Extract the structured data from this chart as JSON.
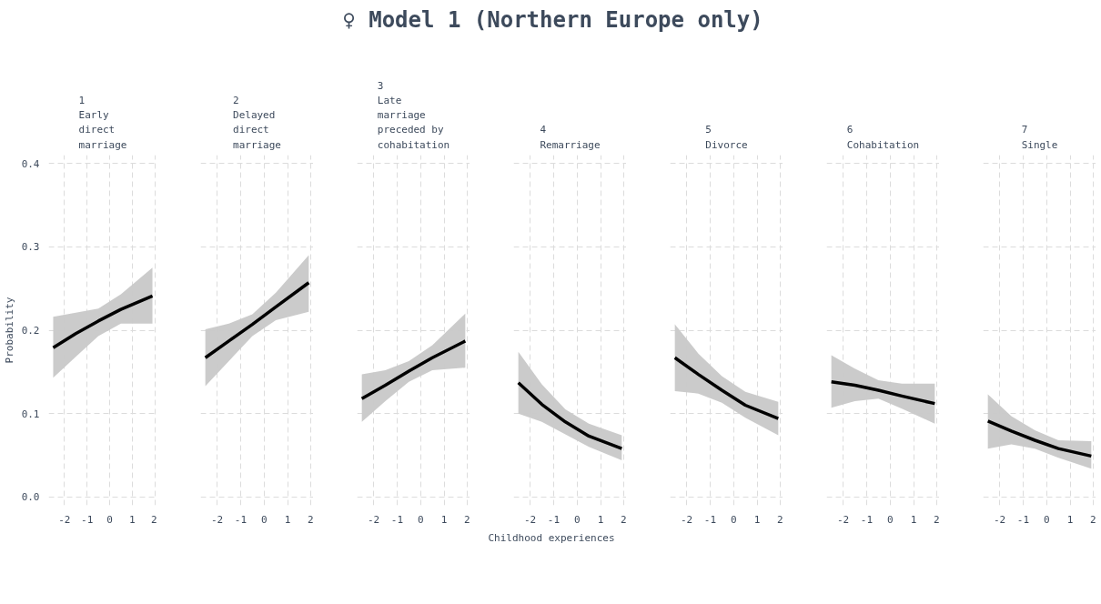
{
  "chart_data": [
    {
      "type": "line",
      "subtitle": "1\nEarly\ndirect\nmarriage",
      "ylabel": "Probability",
      "x": [
        -2.5,
        -1.5,
        -0.5,
        0.5,
        1.9
      ],
      "xlim": [
        -2.7,
        2.1
      ],
      "xticks": [
        -2,
        -1,
        0,
        1,
        2
      ],
      "ylim": [
        -0.01,
        0.41
      ],
      "yticks": [
        {
          "value": 0,
          "label": "0.0"
        },
        0.1,
        0.2,
        0.3,
        0.4
      ],
      "grid": true,
      "line_style": "solid",
      "series": [
        {
          "color": "#000000",
          "values": [
            0.179,
            0.196,
            0.211,
            0.225,
            0.241
          ],
          "lower": [
            0.143,
            0.168,
            0.193,
            0.208,
            0.208
          ],
          "upper": [
            0.216,
            0.221,
            0.226,
            0.243,
            0.275
          ]
        }
      ]
    },
    {
      "type": "line",
      "subtitle": "2\nDelayed\ndirect\nmarriage",
      "x": [
        -2.5,
        -1.5,
        -0.5,
        0.5,
        1.9
      ],
      "xlim": [
        -2.7,
        2.1
      ],
      "xticks": [
        -2,
        -1,
        0,
        1,
        2
      ],
      "ylim": [
        -0.01,
        0.41
      ],
      "yticks": [
        0,
        0.1,
        0.2,
        0.3,
        0.4
      ],
      "grid": true,
      "tick_labels": "x",
      "line_style": "solid",
      "series": [
        {
          "color": "#000000",
          "values": [
            0.167,
            0.187,
            0.207,
            0.228,
            0.257
          ],
          "lower": [
            0.133,
            0.163,
            0.193,
            0.212,
            0.222
          ],
          "upper": [
            0.201,
            0.208,
            0.219,
            0.245,
            0.29
          ]
        }
      ]
    },
    {
      "type": "line",
      "subtitle": "3\nLate\nmarriage\npreceded by\ncohabitation",
      "x": [
        -2.5,
        -1.5,
        -0.5,
        0.5,
        1.9
      ],
      "xlim": [
        -2.7,
        2.1
      ],
      "xticks": [
        -2,
        -1,
        0,
        1,
        2
      ],
      "ylim": [
        -0.01,
        0.41
      ],
      "yticks": [
        0,
        0.1,
        0.2,
        0.3,
        0.4
      ],
      "grid": true,
      "tick_labels": "x",
      "line_style": "solid",
      "series": [
        {
          "color": "#000000",
          "values": [
            0.118,
            0.134,
            0.151,
            0.167,
            0.187
          ],
          "lower": [
            0.09,
            0.115,
            0.138,
            0.152,
            0.155
          ],
          "upper": [
            0.147,
            0.152,
            0.163,
            0.182,
            0.22
          ]
        }
      ]
    },
    {
      "type": "line",
      "title": "♀ Model 1 (Northern Europe only)",
      "subtitle": "4\nRemarriage",
      "xlabel": "Childhood experiences",
      "x": [
        -2.5,
        -1.5,
        -0.5,
        0.5,
        1.9
      ],
      "xlim": [
        -2.7,
        2.1
      ],
      "xticks": [
        -2,
        -1,
        0,
        1,
        2
      ],
      "ylim": [
        -0.01,
        0.41
      ],
      "yticks": [
        0,
        0.1,
        0.2,
        0.3,
        0.4
      ],
      "grid": true,
      "tick_labels": "x",
      "line_style": "solid",
      "series": [
        {
          "color": "#000000",
          "values": [
            0.137,
            0.111,
            0.09,
            0.073,
            0.058
          ],
          "lower": [
            0.1,
            0.09,
            0.075,
            0.06,
            0.044
          ],
          "upper": [
            0.174,
            0.135,
            0.105,
            0.088,
            0.074
          ]
        }
      ]
    },
    {
      "type": "line",
      "subtitle": "5\nDivorce",
      "x": [
        -2.5,
        -1.5,
        -0.5,
        0.5,
        1.9
      ],
      "xlim": [
        -2.7,
        2.1
      ],
      "xticks": [
        -2,
        -1,
        0,
        1,
        2
      ],
      "ylim": [
        -0.01,
        0.41
      ],
      "yticks": [
        0,
        0.1,
        0.2,
        0.3,
        0.4
      ],
      "grid": true,
      "tick_labels": "x",
      "line_style": "solid",
      "series": [
        {
          "color": "#000000",
          "values": [
            0.167,
            0.147,
            0.128,
            0.11,
            0.094
          ],
          "lower": [
            0.127,
            0.124,
            0.113,
            0.095,
            0.074
          ],
          "upper": [
            0.207,
            0.172,
            0.145,
            0.126,
            0.114
          ]
        }
      ]
    },
    {
      "type": "line",
      "subtitle": "6\nCohabitation",
      "x": [
        -2.5,
        -1.5,
        -0.5,
        0.5,
        1.9
      ],
      "xlim": [
        -2.7,
        2.1
      ],
      "xticks": [
        -2,
        -1,
        0,
        1,
        2
      ],
      "ylim": [
        -0.01,
        0.41
      ],
      "yticks": [
        0,
        0.1,
        0.2,
        0.3,
        0.4
      ],
      "grid": true,
      "tick_labels": "x",
      "line_style": "solid",
      "series": [
        {
          "color": "#000000",
          "values": [
            0.138,
            0.134,
            0.128,
            0.121,
            0.112
          ],
          "lower": [
            0.107,
            0.115,
            0.118,
            0.106,
            0.088
          ],
          "upper": [
            0.17,
            0.154,
            0.14,
            0.136,
            0.136
          ]
        }
      ]
    },
    {
      "type": "line",
      "subtitle": "7\nSingle",
      "x": [
        -2.5,
        -1.5,
        -0.5,
        0.5,
        1.9
      ],
      "xlim": [
        -2.7,
        2.1
      ],
      "xticks": [
        -2,
        -1,
        0,
        1,
        2
      ],
      "ylim": [
        -0.01,
        0.41
      ],
      "yticks": [
        0,
        0.1,
        0.2,
        0.3,
        0.4
      ],
      "grid": true,
      "tick_labels": "x",
      "line_style": "solid",
      "series": [
        {
          "color": "#000000",
          "values": [
            0.091,
            0.079,
            0.068,
            0.058,
            0.049
          ],
          "lower": [
            0.058,
            0.063,
            0.058,
            0.047,
            0.034
          ],
          "upper": [
            0.123,
            0.097,
            0.08,
            0.068,
            0.067
          ]
        }
      ]
    }
  ]
}
